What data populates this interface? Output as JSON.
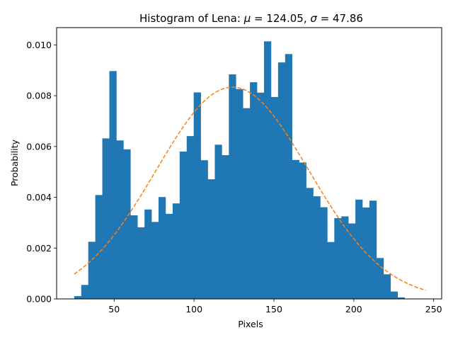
{
  "chart_data": {
    "type": "bar",
    "title": "Histogram of Lena: μ = 124.05, σ = 47.86",
    "title_parts": {
      "prefix": "Histogram of Lena: ",
      "mu_symbol": "μ",
      "equals_1": " = ",
      "mu_value": "124.05",
      "separator": ", ",
      "sigma_symbol": "σ",
      "equals_2": " = ",
      "sigma_value": "47.86"
    },
    "xlabel": "Pixels",
    "ylabel": "Probability",
    "xlim": [
      14,
      255
    ],
    "ylim": [
      0,
      0.01068
    ],
    "x_ticks": [
      50,
      100,
      150,
      200,
      250
    ],
    "y_ticks": [
      0.0,
      0.002,
      0.004,
      0.006,
      0.008,
      0.01
    ],
    "y_tick_labels": [
      "0.000",
      "0.002",
      "0.004",
      "0.006",
      "0.008",
      "0.010"
    ],
    "bin_start": 25,
    "bin_width": 4.4,
    "bar_color": "#1f77b4",
    "values": [
      0.00011,
      0.00055,
      0.00225,
      0.00409,
      0.00632,
      0.00897,
      0.00624,
      0.00589,
      0.00329,
      0.00282,
      0.00352,
      0.00303,
      0.00401,
      0.00335,
      0.00376,
      0.0058,
      0.00641,
      0.00813,
      0.00546,
      0.00471,
      0.00607,
      0.00566,
      0.00884,
      0.00826,
      0.00751,
      0.00853,
      0.00812,
      0.01014,
      0.00795,
      0.00931,
      0.00964,
      0.00547,
      0.00537,
      0.00437,
      0.00404,
      0.00361,
      0.00224,
      0.00318,
      0.00325,
      0.00297,
      0.00391,
      0.0036,
      0.00387,
      0.00161,
      0.00097,
      0.00029,
      6e-05,
      1e-05
    ],
    "fit_line": {
      "style": "dashed",
      "color": "#ff7f0e",
      "mu": 124.05,
      "sigma": 47.86,
      "x_range": [
        25,
        245
      ]
    },
    "grid": false,
    "legend": "none"
  }
}
